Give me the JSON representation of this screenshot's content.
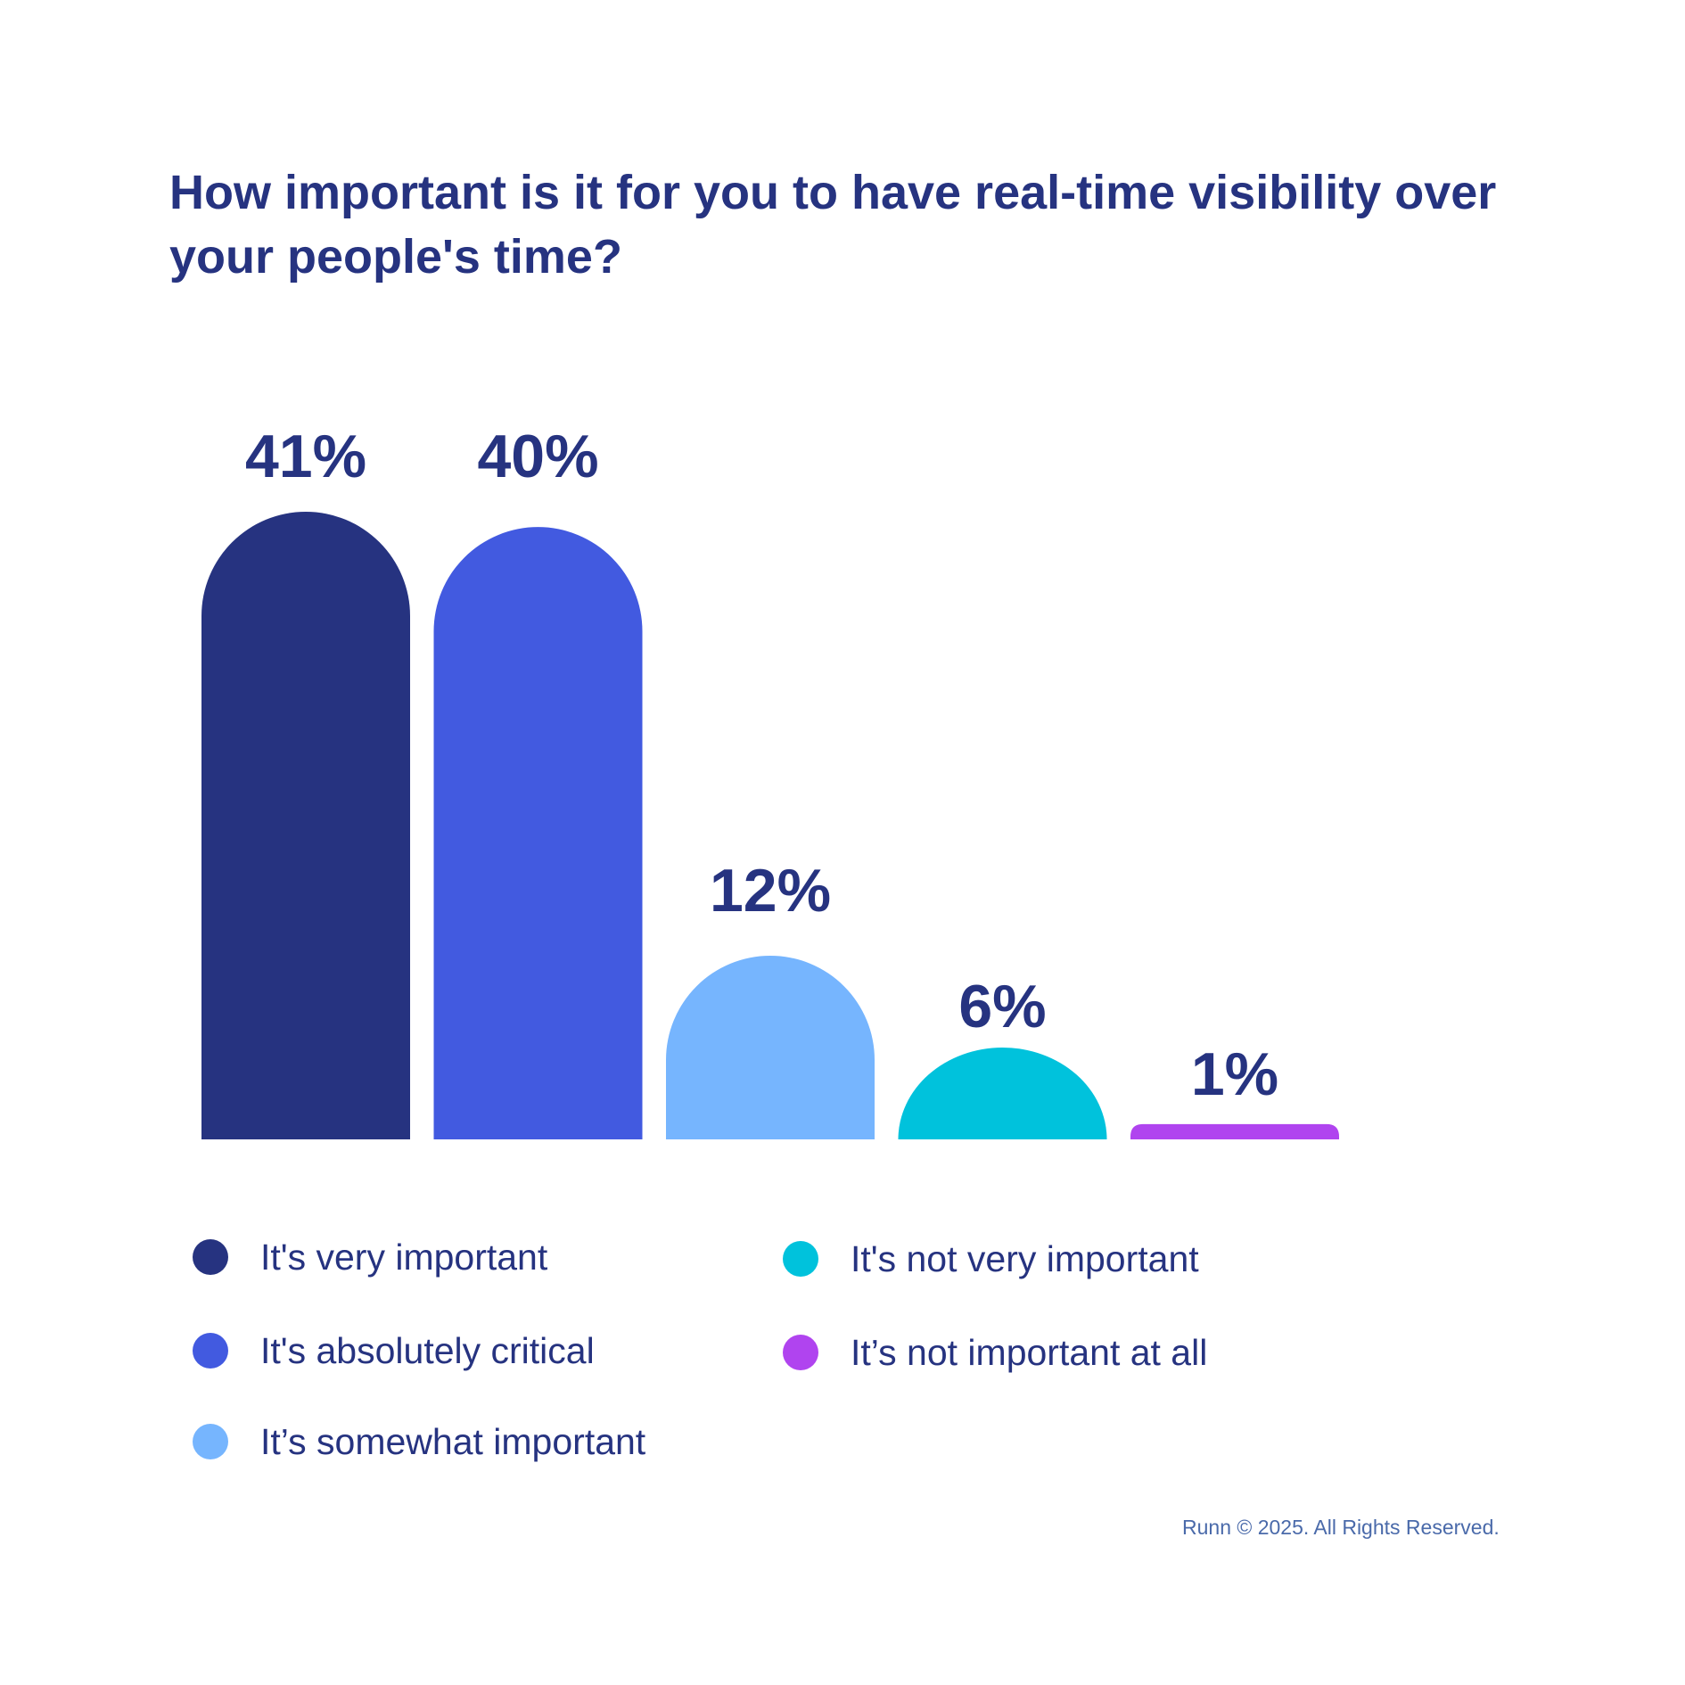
{
  "title": "How important is it for you to have real-time visibility over your people's time?",
  "chart_data": {
    "type": "bar",
    "title": "How important is it for you to have real-time visibility over your people's time?",
    "categories": [
      "It's very important",
      "It's absolutely critical",
      "It’s somewhat important",
      "It's not very important",
      "It’s not important at all"
    ],
    "values": [
      41,
      40,
      12,
      6,
      1
    ],
    "labels": [
      "41%",
      "40%",
      "12%",
      "6%",
      "1%"
    ],
    "colors": [
      "#263380",
      "#425ae0",
      "#76b5fe",
      "#00c2dc",
      "#b044ef"
    ],
    "xlabel": "",
    "ylabel": "",
    "ylim": [
      0,
      41
    ],
    "grid": false,
    "legend_position": "bottom"
  },
  "legend": [
    {
      "label": "It's very important",
      "color": "#263380"
    },
    {
      "label": "It's absolutely critical",
      "color": "#425ae0"
    },
    {
      "label": "It’s somewhat important",
      "color": "#76b5fe"
    },
    {
      "label": "It's not very important",
      "color": "#00c2dc"
    },
    {
      "label": "It’s not important at all",
      "color": "#b044ef"
    }
  ],
  "footer": "Runn © 2025. All Rights Reserved."
}
